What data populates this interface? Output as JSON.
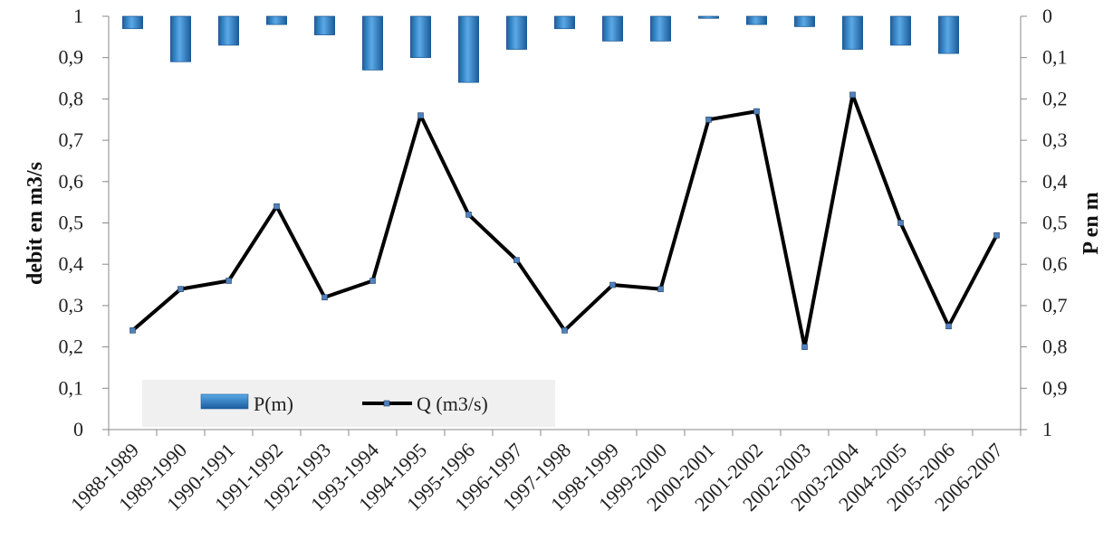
{
  "chart_data": {
    "type": "bar+line",
    "categories": [
      "1988-1989",
      "1989-1990",
      "1990-1991",
      "1991-1992",
      "1992-1993",
      "1993-1994",
      "1994-1995",
      "1995-1996",
      "1996-1997",
      "1997-1998",
      "1998-1999",
      "1999-2000",
      "2000-2001",
      "2001-2002",
      "2002-2003",
      "2003-2004",
      "2004-2005",
      "2005-2006",
      "2006-2007"
    ],
    "series": [
      {
        "name": "P(m)",
        "kind": "bar",
        "axis": "right",
        "values": [
          0.03,
          0.11,
          0.07,
          0.02,
          0.045,
          0.13,
          0.1,
          0.16,
          0.08,
          0.03,
          0.06,
          0.06,
          0.005,
          0.02,
          0.025,
          0.08,
          0.07,
          0.09,
          null
        ],
        "color": "#2E7FC9"
      },
      {
        "name": "Q (m3/s)",
        "kind": "line",
        "axis": "left",
        "values": [
          0.24,
          0.34,
          0.36,
          0.54,
          0.32,
          0.36,
          0.76,
          0.52,
          0.41,
          0.24,
          0.35,
          0.34,
          0.75,
          0.77,
          0.2,
          0.81,
          0.5,
          0.25,
          0.47
        ],
        "color": "#000000",
        "marker_color": "#4F81BD"
      }
    ],
    "y_left": {
      "label": "debit  en   m3/s",
      "range": [
        0,
        1
      ],
      "ticks": [
        "0",
        "0,1",
        "0,2",
        "0,3",
        "0,4",
        "0,5",
        "0,6",
        "0,7",
        "0,8",
        "0,9",
        "1"
      ]
    },
    "y_right": {
      "label": "P en m",
      "range": [
        0,
        1
      ],
      "inverted": true,
      "ticks": [
        "0",
        "0,1",
        "0,2",
        "0,3",
        "0,4",
        "0,5",
        "0,6",
        "0,7",
        "0,8",
        "0,9",
        "1"
      ]
    },
    "xlabel": "",
    "title": "",
    "grid": false,
    "legend": {
      "placement": "bottom-left",
      "items": [
        "P(m)",
        "Q (m3/s)"
      ]
    }
  }
}
